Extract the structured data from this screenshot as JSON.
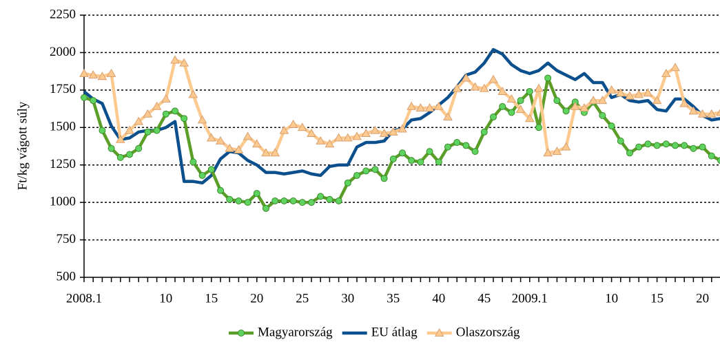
{
  "chart_data": {
    "type": "line",
    "ylabel": "Ft/kg vágott súly",
    "categories": [
      "2008.1",
      null,
      null,
      null,
      null,
      null,
      null,
      null,
      null,
      "10",
      null,
      null,
      null,
      null,
      "15",
      null,
      null,
      null,
      null,
      "20",
      null,
      null,
      null,
      null,
      "25",
      null,
      null,
      null,
      null,
      "30",
      null,
      null,
      null,
      null,
      "35",
      null,
      null,
      null,
      null,
      "40",
      null,
      null,
      null,
      null,
      "45",
      null,
      null,
      null,
      null,
      "2009.1",
      null,
      null,
      null,
      null,
      null,
      null,
      null,
      null,
      "10",
      null,
      null,
      null,
      null,
      "15",
      null,
      null,
      null,
      null,
      "20",
      null,
      null
    ],
    "series": [
      {
        "name": "Magyarország",
        "color": "#5a9e28",
        "marker": "circle",
        "values": [
          1700,
          1680,
          1480,
          1360,
          1300,
          1320,
          1360,
          1470,
          1480,
          1590,
          1610,
          1560,
          1270,
          1180,
          1220,
          1080,
          1020,
          1010,
          1000,
          1060,
          960,
          1010,
          1010,
          1010,
          1000,
          1000,
          1040,
          1020,
          1010,
          1130,
          1180,
          1210,
          1220,
          1160,
          1290,
          1330,
          1280,
          1270,
          1340,
          1270,
          1370,
          1400,
          1380,
          1340,
          1470,
          1570,
          1640,
          1600,
          1680,
          1740,
          1500,
          1830,
          1680,
          1610,
          1670,
          1600,
          1670,
          1580,
          1510,
          1410,
          1330,
          1370,
          1390,
          1380,
          1390,
          1380,
          1380,
          1360,
          1370,
          1310,
          1280
        ]
      },
      {
        "name": "EU átlag",
        "color": "#0b4f8c",
        "marker": "none",
        "values": [
          1740,
          1690,
          1660,
          1510,
          1420,
          1430,
          1470,
          1480,
          1480,
          1500,
          1540,
          1140,
          1140,
          1130,
          1180,
          1290,
          1340,
          1330,
          1280,
          1250,
          1200,
          1200,
          1190,
          1200,
          1210,
          1190,
          1180,
          1240,
          1250,
          1250,
          1370,
          1400,
          1400,
          1410,
          1480,
          1490,
          1550,
          1560,
          1600,
          1650,
          1700,
          1770,
          1850,
          1870,
          1930,
          2020,
          1990,
          1920,
          1880,
          1860,
          1880,
          1930,
          1880,
          1850,
          1820,
          1860,
          1800,
          1800,
          1700,
          1720,
          1680,
          1670,
          1680,
          1620,
          1610,
          1690,
          1690,
          1640,
          1580,
          1550,
          1560
        ]
      },
      {
        "name": "Olaszország",
        "color": "#fcc98f",
        "marker": "triangle",
        "values": [
          1860,
          1850,
          1840,
          1860,
          1420,
          1480,
          1540,
          1590,
          1640,
          1690,
          1950,
          1930,
          1720,
          1550,
          1430,
          1410,
          1360,
          1350,
          1440,
          1390,
          1330,
          1330,
          1480,
          1520,
          1500,
          1460,
          1410,
          1390,
          1430,
          1430,
          1440,
          1460,
          1480,
          1460,
          1470,
          1490,
          1640,
          1630,
          1630,
          1640,
          1570,
          1760,
          1830,
          1770,
          1760,
          1820,
          1740,
          1690,
          1620,
          1560,
          1760,
          1330,
          1340,
          1370,
          1640,
          1630,
          1680,
          1680,
          1750,
          1730,
          1710,
          1720,
          1730,
          1680,
          1860,
          1900,
          1660,
          1610,
          1590,
          1590,
          1600
        ]
      }
    ],
    "ylim": [
      500,
      2250
    ],
    "yticks": [
      500,
      750,
      1000,
      1250,
      1500,
      1750,
      2000,
      2250
    ],
    "grid": true,
    "legend": "bottom"
  }
}
